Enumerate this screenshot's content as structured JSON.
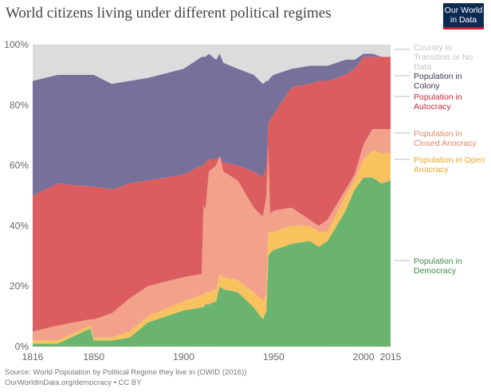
{
  "title": "World citizens living under different political regimes",
  "logo": {
    "line1": "Our World",
    "line2": "in Data"
  },
  "source": "Source: World Population by Political Regime they live in (OWID (2016))",
  "license": "OurWorldInData.org/democracy • CC BY",
  "chart_data": {
    "type": "area",
    "stacked": true,
    "title": "World citizens living under different political regimes",
    "xlim": [
      1816,
      2015
    ],
    "ylim": [
      0,
      100
    ],
    "grid": true,
    "legend_placement": "right",
    "x_ticks": [
      "1816",
      "1850",
      "1900",
      "1950",
      "2000",
      "2015"
    ],
    "y_ticks": [
      "0%",
      "20%",
      "40%",
      "60%",
      "80%",
      "100%"
    ],
    "x": [
      1816,
      1830,
      1848,
      1850,
      1860,
      1870,
      1880,
      1900,
      1910,
      1911,
      1912,
      1914,
      1918,
      1920,
      1922,
      1930,
      1939,
      1944,
      1946,
      1947,
      1948,
      1950,
      1960,
      1970,
      1975,
      1980,
      1990,
      1995,
      2000,
      2005,
      2010,
      2015
    ],
    "series": [
      {
        "name": "Population in Democracy",
        "color": "#6bb46f",
        "label_color": "#3f8a48",
        "values": [
          1,
          1,
          6,
          2,
          2,
          3,
          8,
          12,
          13,
          13,
          14,
          14,
          15,
          20,
          19,
          18,
          13,
          9,
          12,
          30,
          31,
          32,
          34,
          35,
          33,
          35,
          45,
          52,
          56,
          56,
          54,
          55
        ]
      },
      {
        "name": "Population in Open Anocracy",
        "color": "#f8c35f",
        "label_color": "#e9a72a",
        "values": [
          1,
          1,
          1,
          1,
          1,
          2,
          2,
          3,
          4,
          4,
          4,
          4,
          4,
          4,
          4,
          4,
          5,
          6,
          5,
          8,
          7,
          6,
          6,
          5,
          5,
          3,
          5,
          3,
          6,
          9,
          10,
          9
        ]
      },
      {
        "name": "Population in Closed Anocracy",
        "color": "#f2a28a",
        "label_color": "#e2856a",
        "values": [
          3,
          5,
          2,
          6,
          8,
          11,
          10,
          8,
          7,
          30,
          27,
          40,
          41,
          39,
          35,
          33,
          28,
          28,
          33,
          28,
          6,
          7,
          6,
          2,
          2,
          4,
          2,
          2,
          5,
          7,
          8,
          8
        ]
      },
      {
        "name": "Population in Autocracy",
        "color": "#dc5d5f",
        "label_color": "#c52b3b",
        "values": [
          45,
          47,
          44,
          44,
          41,
          38,
          35,
          34,
          36,
          13,
          16,
          4,
          2,
          0,
          3,
          5,
          12,
          13,
          10,
          8,
          31,
          32,
          40,
          45,
          48,
          46,
          38,
          35,
          29,
          24,
          24,
          24
        ]
      },
      {
        "name": "Population in Colony",
        "color": "#76709b",
        "label_color": "#3a3a5a",
        "values": [
          38,
          36,
          37,
          37,
          35,
          34,
          34,
          35,
          36,
          36,
          35,
          35,
          33,
          34,
          33,
          32,
          32,
          31,
          28,
          14,
          14,
          13,
          6,
          6,
          5,
          5,
          5,
          3,
          1,
          1,
          0,
          0
        ]
      },
      {
        "name": "Country in Transition or No Data",
        "color": "#dcdcdc",
        "label_color": "#c4c4c4",
        "values": [
          12,
          10,
          10,
          10,
          13,
          12,
          11,
          8,
          4,
          4,
          4,
          3,
          5,
          3,
          6,
          8,
          10,
          13,
          12,
          12,
          11,
          10,
          8,
          7,
          7,
          7,
          5,
          5,
          3,
          3,
          4,
          4
        ]
      }
    ]
  }
}
